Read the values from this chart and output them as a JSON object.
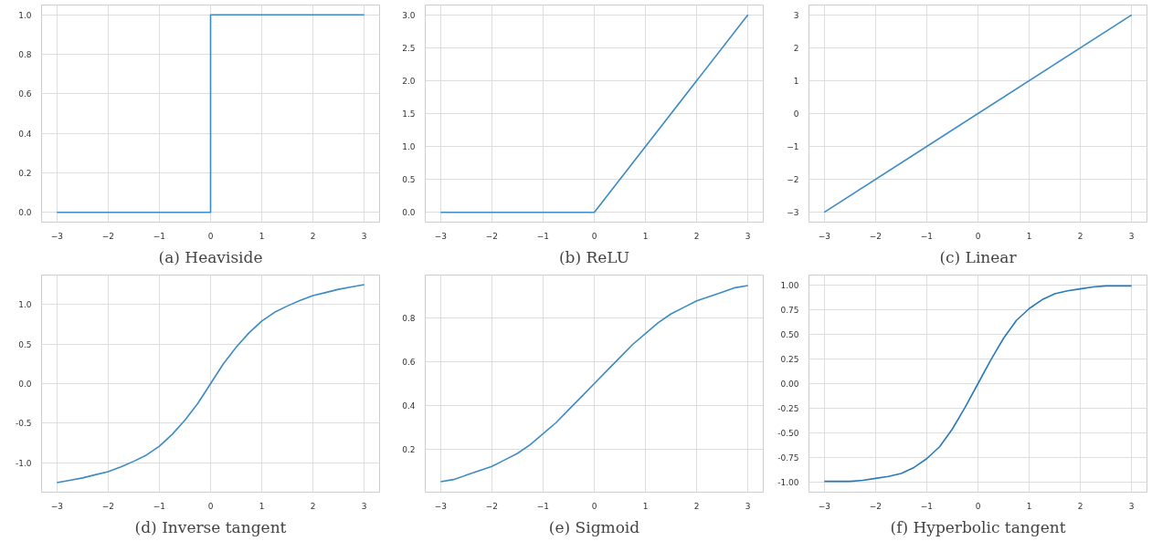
{
  "chart_data": [
    {
      "type": "line",
      "title": "(a) Heaviside",
      "xlim": [
        -3.3,
        3.3
      ],
      "ylim": [
        -0.05,
        1.05
      ],
      "xticks": [
        -3,
        -2,
        -1,
        0,
        1,
        2,
        3
      ],
      "yticks": [
        {
          "value": 0,
          "label": "0.0"
        },
        {
          "value": 0.2,
          "label": "0.2"
        },
        {
          "value": 0.4,
          "label": "0.4"
        },
        {
          "value": 0.6,
          "label": "0.6"
        },
        {
          "value": 0.8,
          "label": "0.8"
        },
        {
          "value": 1,
          "label": "1.0"
        }
      ],
      "grid": true,
      "series": [
        {
          "color": "#3d8bc4",
          "x": [
            -3,
            0,
            0,
            3
          ],
          "values": [
            0,
            0,
            1,
            1
          ]
        }
      ]
    },
    {
      "type": "line",
      "title": "(b) ReLU",
      "xlim": [
        -3.3,
        3.3
      ],
      "ylim": [
        -0.15,
        3.15
      ],
      "xticks": [
        -3,
        -2,
        -1,
        0,
        1,
        2,
        3
      ],
      "yticks": [
        {
          "value": 0,
          "label": "0.0"
        },
        {
          "value": 0.5,
          "label": "0.5"
        },
        {
          "value": 1,
          "label": "1.0"
        },
        {
          "value": 1.5,
          "label": "1.5"
        },
        {
          "value": 2,
          "label": "2.0"
        },
        {
          "value": 2.5,
          "label": "2.5"
        },
        {
          "value": 3,
          "label": "3.0"
        }
      ],
      "grid": true,
      "series": [
        {
          "color": "#3d8bc4",
          "x": [
            -3,
            0,
            3
          ],
          "values": [
            0,
            0,
            3
          ]
        }
      ]
    },
    {
      "type": "line",
      "title": "(c) Linear",
      "xlim": [
        -3.3,
        3.3
      ],
      "ylim": [
        -3.3,
        3.3
      ],
      "xticks": [
        -3,
        -2,
        -1,
        0,
        1,
        2,
        3
      ],
      "yticks": [
        -3,
        -2,
        -1,
        0,
        1,
        2,
        3
      ],
      "grid": true,
      "series": [
        {
          "color": "#3d8bc4",
          "x": [
            -3,
            3
          ],
          "values": [
            -3,
            3
          ]
        }
      ]
    },
    {
      "type": "line",
      "title": "(d) Inverse tangent",
      "xlim": [
        -3.3,
        3.3
      ],
      "ylim": [
        -1.37,
        1.37
      ],
      "xticks": [
        -3,
        -2,
        -1,
        0,
        1,
        2,
        3
      ],
      "yticks": [
        {
          "value": -1,
          "label": "-1.0"
        },
        {
          "value": -0.5,
          "label": "-0.5"
        },
        {
          "value": 0,
          "label": "0.0"
        },
        {
          "value": 0.5,
          "label": "0.5"
        },
        {
          "value": 1,
          "label": "1.0"
        }
      ],
      "grid": true,
      "series": [
        {
          "color": "#3d8bc4",
          "x": [
            -3,
            -2.75,
            -2.5,
            -2.25,
            -2,
            -1.75,
            -1.5,
            -1.25,
            -1,
            -0.75,
            -0.5,
            -0.25,
            0,
            0.25,
            0.5,
            0.75,
            1,
            1.25,
            1.5,
            1.75,
            2,
            2.25,
            2.5,
            2.75,
            3
          ],
          "values": [
            -1.25,
            -1.22,
            -1.19,
            -1.15,
            -1.11,
            -1.05,
            -0.98,
            -0.9,
            -0.79,
            -0.64,
            -0.46,
            -0.25,
            0,
            0.25,
            0.46,
            0.64,
            0.79,
            0.9,
            0.98,
            1.05,
            1.11,
            1.15,
            1.19,
            1.22,
            1.25
          ]
        }
      ]
    },
    {
      "type": "line",
      "title": "(e) Sigmoid",
      "xlim": [
        -3.3,
        3.3
      ],
      "ylim": [
        0.002,
        0.998
      ],
      "xticks": [
        -3,
        -2,
        -1,
        0,
        1,
        2,
        3
      ],
      "yticks": [
        0.2,
        0.4,
        0.6,
        0.8
      ],
      "grid": true,
      "series": [
        {
          "color": "#3d8bc4",
          "x": [
            -3,
            -2.75,
            -2.5,
            -2.25,
            -2,
            -1.75,
            -1.5,
            -1.25,
            -1,
            -0.75,
            -0.5,
            -0.25,
            0,
            0.25,
            0.5,
            0.75,
            1,
            1.25,
            1.5,
            1.75,
            2,
            2.25,
            2.5,
            2.75,
            3
          ],
          "values": [
            0.05,
            0.06,
            0.08,
            0.1,
            0.12,
            0.15,
            0.18,
            0.22,
            0.27,
            0.32,
            0.38,
            0.44,
            0.5,
            0.56,
            0.62,
            0.68,
            0.73,
            0.78,
            0.82,
            0.85,
            0.88,
            0.9,
            0.92,
            0.94,
            0.95
          ]
        }
      ]
    },
    {
      "type": "line",
      "title": "(f) Hyperbolic tangent",
      "xlim": [
        -3.3,
        3.3
      ],
      "ylim": [
        -1.1,
        1.1
      ],
      "xticks": [
        -3,
        -2,
        -1,
        0,
        1,
        2,
        3
      ],
      "yticks": [
        {
          "value": -1,
          "label": "-1.00"
        },
        {
          "value": -0.75,
          "label": "-0.75"
        },
        {
          "value": -0.5,
          "label": "-0.50"
        },
        {
          "value": -0.25,
          "label": "-0.25"
        },
        {
          "value": 0,
          "label": "0.00"
        },
        {
          "value": 0.25,
          "label": "0.25"
        },
        {
          "value": 0.5,
          "label": "0.50"
        },
        {
          "value": 0.75,
          "label": "0.75"
        },
        {
          "value": 1,
          "label": "1.00"
        }
      ],
      "grid": true,
      "series": [
        {
          "color": "#2a7ab9",
          "x": [
            -3,
            -2.75,
            -2.5,
            -2.25,
            -2,
            -1.75,
            -1.5,
            -1.25,
            -1,
            -0.75,
            -0.5,
            -0.25,
            0,
            0.25,
            0.5,
            0.75,
            1,
            1.25,
            1.5,
            1.75,
            2,
            2.25,
            2.5,
            2.75,
            3
          ],
          "values": [
            -0.99,
            -0.99,
            -0.99,
            -0.98,
            -0.96,
            -0.94,
            -0.91,
            -0.85,
            -0.76,
            -0.64,
            -0.46,
            -0.24,
            0,
            0.24,
            0.46,
            0.64,
            0.76,
            0.85,
            0.91,
            0.94,
            0.96,
            0.98,
            0.99,
            0.99,
            0.99
          ]
        }
      ]
    }
  ]
}
